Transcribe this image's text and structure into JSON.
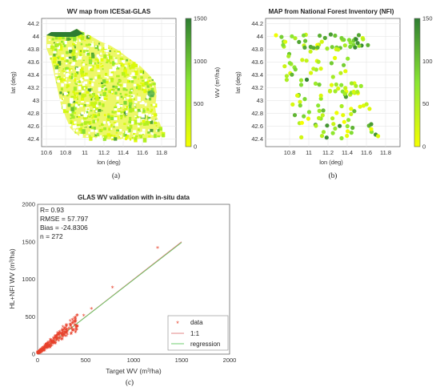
{
  "colors": {
    "cb_top": "#2e7d32",
    "cb_mid": "#5fd23c",
    "cb_bottom": "#f5ff00",
    "data_marker": "#e8412b",
    "line_1to1": "#e07a7a",
    "line_regression": "#62c862"
  },
  "chart_data": [
    {
      "type": "heatmap",
      "panel": "a",
      "title": "WV map from ICESat-GLAS",
      "xlabel": "lon (deg)",
      "ylabel": "lat (deg)",
      "xlim": [
        10.55,
        11.95
      ],
      "ylim": [
        42.28,
        44.28
      ],
      "xticks": [
        "10.6",
        "10.8",
        "11",
        "11.2",
        "11.4",
        "11.6",
        "11.8"
      ],
      "yticks": [
        "44.2",
        "44",
        "43.8",
        "43.6",
        "43.4",
        "43.2",
        "43",
        "42.8",
        "42.6",
        "42.4"
      ],
      "colorbar": {
        "label": "WV (m³/ha)",
        "ticks": [
          "1500",
          "1000",
          "500",
          "0"
        ],
        "range": [
          0,
          1500
        ]
      },
      "caption": "(a)"
    },
    {
      "type": "scatter",
      "panel": "b",
      "title": "MAP from National Forest Inventory (NFI)",
      "xlabel": "lon (deg)",
      "ylabel": "lat (deg)",
      "xlim": [
        10.55,
        11.95
      ],
      "ylim": [
        42.28,
        44.28
      ],
      "xticks": [
        "10.8",
        "11",
        "11.2",
        "11.4",
        "11.6",
        "11.8"
      ],
      "yticks": [
        "44.2",
        "44",
        "43.8",
        "43.6",
        "43.4",
        "43.2",
        "43",
        "42.8",
        "42.6",
        "42.4"
      ],
      "colorbar": {
        "ticks": [
          "150",
          "100",
          "50",
          "0"
        ],
        "range": [
          0,
          150
        ]
      },
      "caption": "(b)"
    },
    {
      "type": "scatter",
      "panel": "c",
      "title": "GLAS WV validation with in-situ data",
      "xlabel": "Target WV (m³/ha)",
      "ylabel": "HL+NFI WV (m³/ha)",
      "xlim": [
        0,
        2000
      ],
      "ylim": [
        0,
        2000
      ],
      "xticks": [
        "0",
        "500",
        "1000",
        "1500",
        "2000"
      ],
      "yticks": [
        "0",
        "500",
        "1000",
        "1500",
        "2000"
      ],
      "stats": [
        "R= 0.93",
        "RMSE = 57.797",
        "Bias = -24.8306",
        "n = 272"
      ],
      "legend": [
        "data",
        "1:1",
        "regression"
      ],
      "legend_position": "bottom-right",
      "lines": {
        "one_to_one": [
          [
            0,
            0
          ],
          [
            1500,
            1500
          ]
        ],
        "regression": [
          [
            0,
            0
          ],
          [
            1500,
            1490
          ]
        ]
      },
      "notable_points": [
        {
          "x": 1250,
          "y": 1410
        },
        {
          "x": 780,
          "y": 880
        },
        {
          "x": 560,
          "y": 600
        },
        {
          "x": 480,
          "y": 510
        },
        {
          "x": 400,
          "y": 330
        }
      ],
      "caption": "(c)"
    }
  ]
}
